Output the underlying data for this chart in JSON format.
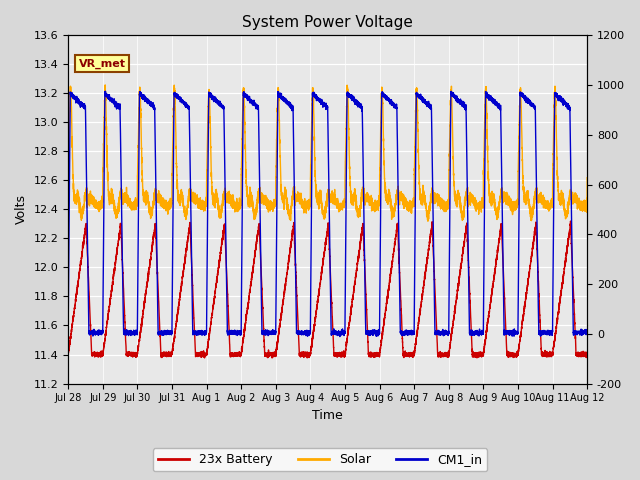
{
  "title": "System Power Voltage",
  "xlabel": "Time",
  "ylabel_left": "Volts",
  "ylim_left": [
    11.2,
    13.6
  ],
  "ylim_right": [
    -200,
    1200
  ],
  "annotation_text": "VR_met",
  "legend_labels": [
    "23x Battery",
    "Solar",
    "CM1_in"
  ],
  "legend_colors": [
    "#cc0000",
    "#ffaa00",
    "#0000cc"
  ],
  "xtick_labels": [
    "Jul 28",
    "Jul 29",
    "Jul 30",
    "Jul 31",
    "Aug 1",
    "Aug 2",
    "Aug 3",
    "Aug 4",
    "Aug 5",
    "Aug 6",
    "Aug 7",
    "Aug 8",
    "Aug 9",
    "Aug 10",
    "Aug 11",
    "Aug 12"
  ],
  "yticks_left": [
    11.2,
    11.4,
    11.6,
    11.8,
    12.0,
    12.2,
    12.4,
    12.6,
    12.8,
    13.0,
    13.2,
    13.4,
    13.6
  ],
  "yticks_right": [
    -200,
    0,
    200,
    400,
    600,
    800,
    1000,
    1200
  ],
  "n_days": 15,
  "background_color": "#d8d8d8",
  "plot_bg_color": "#e8e8e8",
  "grid_color": "#ffffff",
  "linewidth": 1.0
}
